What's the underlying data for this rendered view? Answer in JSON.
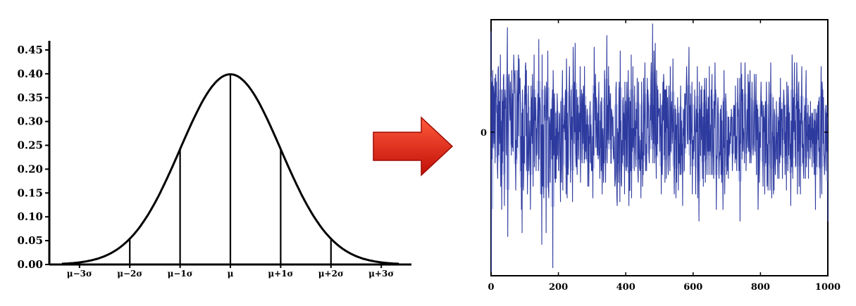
{
  "chart_data": [
    {
      "type": "line",
      "title": "",
      "xlabel": "",
      "ylabel": "",
      "xlim": [
        -3.6,
        3.6
      ],
      "ylim": [
        0,
        0.45
      ],
      "ytick_labels": [
        "0.00",
        "0.05",
        "0.10",
        "0.15",
        "0.20",
        "0.25",
        "0.30",
        "0.35",
        "0.40",
        "0.45"
      ],
      "ytick_values": [
        0,
        0.05,
        0.1,
        0.15,
        0.2,
        0.25,
        0.3,
        0.35,
        0.4,
        0.45
      ],
      "xtick_labels": [
        "μ−3σ",
        "μ−2σ",
        "μ−1σ",
        "μ",
        "μ+1σ",
        "μ+2σ",
        "μ+3σ"
      ],
      "xtick_values": [
        -3,
        -2,
        -1,
        0,
        1,
        2,
        3
      ],
      "series": [
        {
          "curve": "normal-pdf",
          "mean": 0,
          "sd": 1,
          "color": "#000000"
        }
      ],
      "vertical_lines_at": [
        -2,
        -1,
        0,
        1,
        2
      ],
      "grid": false
    },
    {
      "type": "line",
      "title": "",
      "xlabel": "",
      "ylabel": "",
      "xlim": [
        0,
        1000
      ],
      "ylim": [
        -3.7,
        2.9
      ],
      "xtick_labels": [
        "0",
        "200",
        "400",
        "600",
        "800",
        "1000"
      ],
      "xtick_values": [
        0,
        200,
        400,
        600,
        800,
        1000
      ],
      "ytick_labels": [
        "0"
      ],
      "ytick_values": [
        0
      ],
      "series": [
        {
          "n_points": 1000,
          "mean": 0,
          "sd": 1,
          "color": "#2d3a9e",
          "fill_color": "#c9cff2",
          "values": [
            2.6,
            -3.6,
            1.3,
            -0.7,
            0.8,
            1.6,
            -0.4,
            1.2,
            1.0,
            -0.3,
            0.7,
            1.4,
            -0.8,
            0.2,
            1.5,
            0.9,
            1.3,
            0.5,
            0.7,
            -0.9,
            -1.2,
            1.6,
            1.7,
            -0.6,
            0.7,
            0.8,
            -0.3,
            0.6,
            2.0,
            -1.4,
            0.3,
            -0.6,
            -2.0,
            1.1,
            -0.8,
            0.8,
            -0.5,
            1.4,
            1.5,
            0.2,
            -1.9,
            0.8,
            1.1,
            0.6,
            0.9,
            -0.5,
            -0.6,
            0.3,
            1.7,
            2.7,
            -2.7,
            -0.4,
            0.4,
            1.4,
            1.5,
            1.0,
            0.5,
            0.3,
            1.3,
            0.6,
            0.0,
            -0.6,
            1.6,
            -0.2,
            -0.4,
            1.0,
            -0.5,
            1.1,
            2.0,
            1.5,
            1.5,
            1.0,
            1.6,
            -0.7,
            -1.5,
            -0.2,
            -0.7,
            0.3,
            1.6,
            -0.4,
            1.0,
            0.8,
            2.0,
            -0.1,
            1.9,
            1.0,
            1.0,
            1.4,
            0.3,
            -1.0,
            -0.1,
            -2.0,
            0.5,
            -2.6,
            1.1,
            -0.8,
            0.6,
            -1.5,
            -1.0,
            -0.1,
            -0.8,
            1.2,
            0.7,
            1.7,
            1.8,
            -0.1,
            1.6,
            -1.0,
            0.5,
            -1.6,
            -0.7,
            -0.4,
            1.2,
            -1.0,
            -0.8,
            -0.1,
            0.3,
            -0.3,
            -2.0,
            -0.7,
            1.2,
            -0.1,
            0.9,
            -0.3,
            1.5,
            0.8,
            -1.4,
            0.1,
            0.5,
            2.0,
            -0.9,
            0.9,
            0.3,
            0.9,
            0.5,
            -1.0,
            0.1,
            -0.6,
            0.1,
            0.3,
            0.6,
            1.0,
            -1.0,
            2.4,
            -0.7,
            0.8,
            0.9,
            0.7,
            0.5,
            -0.5,
            -1.6,
            0.2,
            -2.9,
            2.0,
            -1.3,
            -1.4,
            0.2,
            -1.0,
            -1.7,
            0.7,
            0.3,
            1.2,
            1.1,
            0.4,
            0.4,
            -2.6,
            1.3,
            0.7,
            0.7,
            0.3,
            2.1,
            -1.3,
            -1.5,
            -1.7,
            0.4,
            0.3,
            0.2,
            -1.3,
            -0.3,
            0.6,
            -0.2,
            0.6,
            -0.7,
            0.5,
            1.1,
            -3.5,
            1.6,
            1.0,
            -0.6,
            0.1,
            1.0,
            -1.2,
            -0.1,
            -1.3,
            0.5,
            -1.2,
            0.1,
            -0.7,
            1.0,
            0.7,
            -0.6,
            0.0,
            -1.0,
            -0.1,
            0.4,
            0.5,
            -0.5,
            -0.8,
            -1.8,
            0.8,
            -0.5,
            -1.3,
            0.2,
            0.9,
            1.6,
            -1.5,
            0.0,
            0.2,
            0.1,
            0.7,
            0.0,
            0.3,
            -0.2,
            1.1,
            0.4,
            -1.6,
            1.9,
            1.1,
            -1.7,
            0.5,
            -1.0,
            -1.1,
            0.1,
            0.2,
            1.1,
            1.7,
            0.6,
            0.2,
            -1.3,
            -0.4,
            1.1,
            0.1,
            -0.2,
            0.4,
            -1.8,
            -0.1,
            2.2,
            1.3,
            0.3,
            -0.3,
            1.3,
            0.0,
            2.3,
            0.2,
            -0.7,
            -0.9,
            1.1,
            -0.7,
            -1.1,
            0.9,
            -0.2,
            0.7,
            -0.7,
            -0.4,
            0.5,
            0.2,
            0.0,
            1.7,
            -1.3,
            -0.4,
            0.7,
            1.1,
            0.4,
            -0.8,
            1.0,
            0.3,
            -0.3,
            1.2,
            1.0,
            -0.8,
            1.7,
            -0.7,
            -0.2,
            0.7,
            -0.5,
            0.2,
            -0.7,
            0.3,
            0.6,
            0.4,
            -1.4,
            0.2,
            0.0,
            -1.4,
            -0.1,
            -0.3,
            0.6,
            0.8,
            -0.8,
            0.2,
            0.0,
            -1.0,
            -0.9,
            -1.0,
            -0.1,
            -1.7,
            0.2,
            1.0,
            -0.6,
            2.2,
            1.2,
            1.1,
            0.3,
            1.5,
            -0.4,
            0.1,
            0.9,
            0.2,
            -0.6,
            -0.2,
            0.5,
            -0.7,
            0.8,
            1.3,
            -0.6,
            -0.4,
            -1.2,
            0.3,
            -0.4,
            0.8,
            -1.0,
            0.9,
            -0.6,
            -1.6,
            0.1,
            -0.1,
            -0.8,
            -1.3,
            0.1,
            -0.8,
            1.6,
            1.2,
            0.1,
            -1.3,
            -0.4,
            -0.4,
            1.0,
            2.5,
            -0.8,
            0.7,
            -0.2,
            0.2,
            1.7,
            -0.3,
            1.2,
            0.8,
            0.8,
            -0.2,
            1.0,
            -0.8,
            -0.8,
            0.6,
            0.5,
            0.4,
            -0.1,
            0.4,
            -0.4,
            -0.7,
            -0.6,
            -0.1,
            -0.7,
            -1.4,
            -1.3,
            -1.1,
            1.1,
            1.3,
            -0.7,
            -1.7,
            -1.9,
            0.1,
            -0.8,
            0.0,
            -1.3,
            0.3,
            1.3,
            -0.2,
            -1.8,
            2.1,
            0.0,
            0.3,
            -1.3,
            -1.4,
            -0.2,
            -0.8,
            -0.4,
            0.8,
            0.9,
            -0.6,
            0.5,
            0.1,
            -1.6,
            1.3,
            -0.2,
            0.8,
            -0.9,
            -1.0,
            0.7,
            1.3,
            -0.9,
            0.2,
            0.7,
            1.6,
            -0.5,
            -1.9,
            0.9,
            -1.5,
            -1.5,
            0.8,
            0.7,
            -1.0,
            2.0,
            -1.7,
            0.1,
            -0.5,
            0.0,
            1.7,
            -0.4,
            0.1,
            0.1,
            -1.0,
            1.2,
            -0.1,
            0.3,
            -0.5,
            -0.9,
            0.6,
            0.1,
            0.1,
            1.4,
            -0.5,
            -1.1,
            -1.3,
            1.3,
            -0.7,
            -0.1,
            -0.8,
            -1.0,
            -0.7,
            -0.2,
            -1.7,
            -0.1,
            1.3,
            -0.7,
            0.0,
            -1.4,
            -0.5,
            -1.1,
            1.4,
            -0.6,
            0.2,
            0.5,
            1.8,
            0.4,
            -1.0,
            -0.3,
            -0.6,
            -1.0,
            0.2,
            1.4,
            0.1,
            1.1,
            0.8,
            0.6,
            -0.6,
            -0.8,
            -0.1,
            -0.1,
            0.7,
            0.3,
            1.4,
            1.8,
            -0.2,
            0.2,
            0.3,
            2.8,
            -0.8,
            0.7,
            -0.3,
            2.1,
            1.4,
            -0.8,
            0.6,
            2.3,
            -0.3,
            -0.4,
            -1.2,
            1.6,
            -0.6,
            1.2,
            -0.3,
            1.1,
            0.4,
            0.6,
            0.6,
            0.6,
            0.2,
            -0.5,
            1.0,
            -0.1,
            0.2,
            -1.6,
            0.7,
            -0.8,
            -1.1,
            0.6,
            1.3,
            0.3,
            1.5,
            1.3,
            -0.6,
            1.1,
            -1.3,
            1.1,
            0.0,
            1.1,
            -1.2,
            1.2,
            0.1,
            0.4,
            0.9,
            -0.8,
            -1.1,
            0.2,
            1.2,
            -0.6,
            -0.4,
            -1.0,
            1.7,
            0.5,
            -0.5,
            0.6,
            0.8,
            0.3,
            -0.3,
            -0.1,
            1.9,
            0.0,
            0.6,
            -0.9,
            -1.6,
            -0.5,
            0.7,
            -0.2,
            0.6,
            -1.7,
            0.2,
            -1.3,
            0.1,
            0.2,
            0.9,
            -0.2,
            -1.5,
            -0.4,
            0.5,
            -0.8,
            -0.3,
            -1.1,
            0.5,
            1.2,
            -1.1,
            -0.5,
            0.3,
            -0.6,
            -0.3,
            -1.9,
            0.1,
            -0.1,
            0.6,
            0.3,
            -1.0,
            1.0,
            -0.4,
            -0.4,
            1.0,
            0.7,
            1.2,
            1.7,
            1.2,
            0.1,
            -0.3,
            -0.3,
            0.7,
            1.3,
            2.2,
            -0.2,
            0.2,
            0.7,
            -1.1,
            1.0,
            -0.3,
            0.1,
            0.0,
            1.3,
            -1.6,
            -0.3,
            -0.2,
            -0.7,
            -0.1,
            -0.5,
            0.0,
            1.1,
            0.1,
            0.0,
            -1.6,
            0.2,
            0.6,
            0.0,
            0.6,
            1.7,
            -1.7,
            0.5,
            -0.5,
            -1.1,
            -2.3,
            1.3,
            0.1,
            0.6,
            -0.6,
            -0.6,
            1.1,
            -0.2,
            1.2,
            0.4,
            -0.4,
            -1.2,
            0.4,
            -1.4,
            0.2,
            1.1,
            -0.6,
            1.4,
            0.7,
            -1.3,
            -0.4,
            0.5,
            1.4,
            -0.4,
            -1.1,
            0.6,
            0.0,
            -0.5,
            0.9,
            -0.1,
            -1.1,
            1.7,
            -0.2,
            -0.5,
            -0.1,
            0.2,
            -1.1,
            1.1,
            0.8,
            1.5,
            -1.1,
            0.6,
            -0.3,
            -0.6,
            -1.2,
            0.8,
            0.1,
            0.5,
            1.8,
            0.7,
            1.1,
            -0.6,
            -2.0,
            -0.6,
            -0.7,
            -0.5,
            0.7,
            0.9,
            0.3,
            -0.4,
            -1.2,
            -0.7,
            -0.5,
            -0.6,
            0.6,
            0.1,
            -1.1,
            0.7,
            -1.3,
            0.3,
            -0.7,
            -1.1,
            -2.0,
            0.8,
            -0.4,
            1.6,
            0.3,
            -1.6,
            -0.8,
            -0.2,
            1.0,
            0.8,
            0.1,
            -1.1,
            -0.5,
            -0.2,
            -1.0,
            0.4,
            -1.2,
            0.4,
            -0.6,
            -0.5,
            -0.2,
            0.0,
            -0.3,
            0.4,
            -0.1,
            0.6,
            0.3,
            0.4,
            -1.0,
            -0.6,
            -0.5,
            0.3,
            0.7,
            -0.1,
            0.5,
            0.7,
            -0.8,
            1.2,
            -0.6,
            -0.7,
            -0.1,
            -1.0,
            -0.4,
            0.2,
            1.4,
            0.4,
            0.6,
            -0.1,
            -1.0,
            -0.9,
            1.4,
            -2.3,
            -0.2,
            -0.3,
            1.8,
            0.8,
            1.5,
            -0.7,
            1.1,
            1.1,
            -0.5,
            0.1,
            -0.1,
            0.0,
            -0.8,
            0.9,
            1.8,
            0.6,
            0.2,
            -1.0,
            -0.4,
            -0.1,
            0.5,
            0.6,
            -0.4,
            1.5,
            1.0,
            -0.5,
            1.3,
            0.4,
            -0.8,
            1.6,
            -0.5,
            -0.5,
            -0.8,
            -0.3,
            0.6,
            1.3,
            0.3,
            -0.3,
            -0.6,
            -0.4,
            0.4,
            0.8,
            1.5,
            -0.3,
            -0.5,
            0.4,
            0.9,
            1.5,
            -1.1,
            0.7,
            0.7,
            -0.2,
            0.6,
            -2.0,
            -1.3,
            -0.1,
            0.4,
            -1.3,
            0.0,
            -0.1,
            -0.4,
            0.8,
            1.3,
            0.5,
            0.4,
            0.8,
            0.5,
            -0.7,
            -1.4,
            0.7,
            0.0,
            0.4,
            0.2,
            -1.6,
            0.5,
            0.8,
            -0.8,
            -0.1,
            1.3,
            0.4,
            -1.4,
            -1.1,
            -0.3,
            -1.5,
            0.1,
            0.5,
            1.3,
            -0.3,
            -0.2,
            -1.5,
            0.5,
            1.8,
            0.6,
            0.2,
            -1.7,
            -0.5,
            0.0,
            0.0,
            0.9,
            -1.6,
            -0.1,
            -1.5,
            0.6,
            0.4,
            -0.8,
            -1.1,
            -0.4,
            -0.1,
            0.8,
            -0.7,
            0.0,
            -0.7,
            -1.2,
            0.4,
            -0.1,
            0.3,
            -1.2,
            0.9,
            -0.8,
            -0.4,
            1.4,
            -0.6,
            -0.1,
            0.6,
            0.3,
            0.6,
            -1.2,
            0.1,
            -0.2,
            0.8,
            1.1,
            0.8,
            -0.3,
            0.7,
            -1.1,
            0.0,
            -0.6,
            0.4,
            -1.5,
            1.3,
            0.7,
            0.1,
            -1.0,
            1.2,
            0.8,
            -0.6,
            0.5,
            0.5,
            -0.2,
            -0.7,
            -0.3,
            -1.9,
            0.3,
            -0.6,
            -0.9,
            2.0,
            1.3,
            -1.2,
            0.1,
            0.9,
            0.0,
            0.3,
            1.8,
            -0.2,
            0.3,
            -0.9,
            -0.8,
            0.7,
            0.6,
            1.8,
            1.2,
            -1.6,
            0.8,
            -0.5,
            1.1,
            1.3,
            -1.4,
            0.6,
            -0.3,
            0.3,
            -1.6,
            0.5,
            0.2,
            0.9,
            1.7,
            -0.4,
            0.3,
            -0.8,
            -0.3,
            -1.0,
            -1.2,
            0.3,
            0.4,
            0.7,
            0.2,
            -1.2,
            1.0,
            1.6,
            -0.9,
            0.0,
            -0.1,
            0.5,
            -0.5,
            0.7,
            -1.2,
            0.2,
            -0.2,
            0.4,
            0.2,
            -0.7,
            0.8,
            -0.4,
            0.1,
            -0.2,
            0.5,
            -0.9,
            0.5,
            0.2,
            -0.3,
            0.1,
            -0.8,
            0.6,
            -1.1,
            0.3,
            -0.5,
            -2.0,
            0.6,
            -0.3,
            0.5,
            -0.9,
            -0.1,
            0.3,
            0.7,
            -0.2,
            0.8,
            -0.5,
            0.9,
            -0.9,
            -0.4,
            -1.7,
            -0.4,
            0.7,
            1.7,
            -0.1,
            -1.6,
            1.3,
            1.0,
            1.1,
            -0.3,
            0.9,
            -0.6,
            -0.6,
            -1.1,
            -0.8,
            -0.4,
            0.5,
            0.7,
            -1.0,
            0.5,
            -0.5,
            0.7,
            0.0,
            -2.3
          ]
        }
      ],
      "grid": false
    }
  ],
  "arrow": {
    "color_top": "#ff5a3c",
    "color_bottom": "#c10f06",
    "direction": "right"
  }
}
